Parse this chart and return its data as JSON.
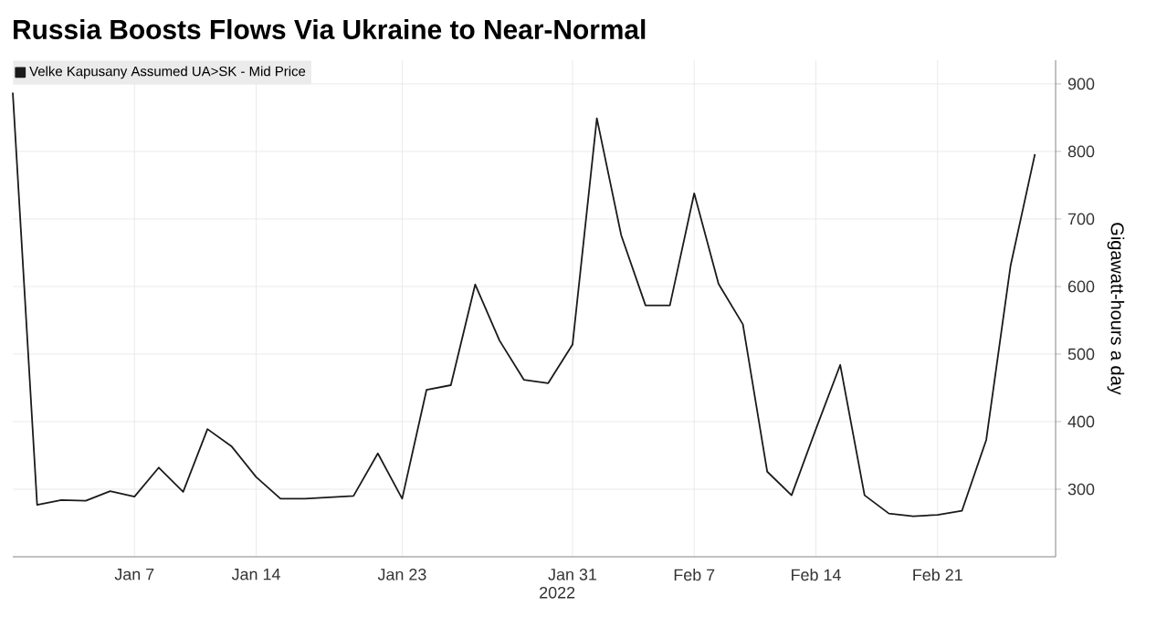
{
  "chart_data": {
    "type": "line",
    "title": "Russia Boosts Flows Via Ukraine to Near-Normal",
    "ylabel": "Gigawatt-hours a day",
    "categories": [
      null,
      null,
      null,
      null,
      null,
      "Jan 7",
      null,
      null,
      null,
      null,
      "Jan 14",
      null,
      null,
      null,
      null,
      null,
      "Jan 23",
      null,
      null,
      null,
      null,
      null,
      null,
      "Jan 31",
      null,
      null,
      null,
      null,
      "Feb 7",
      null,
      null,
      null,
      null,
      "Feb 14",
      null,
      null,
      null,
      null,
      "Feb 21",
      null,
      null,
      null,
      null
    ],
    "series": [
      {
        "name": "Velke Kapusany Assumed UA>SK - Mid Price",
        "color": "#1a1a1a",
        "values": [
          887,
          277,
          284,
          283,
          297,
          289,
          332,
          296,
          389,
          363,
          318,
          286,
          286,
          288,
          290,
          353,
          286,
          447,
          454,
          603,
          520,
          462,
          457,
          514,
          849,
          676,
          572,
          572,
          738,
          604,
          544,
          326,
          291,
          389,
          484,
          291,
          264,
          260,
          262,
          268,
          373,
          631,
          796
        ]
      }
    ],
    "annotations": [
      "2022"
    ],
    "ylim": [
      200,
      935
    ],
    "yticks": [
      300,
      400,
      500,
      600,
      700,
      800,
      900
    ],
    "grid": true,
    "legend": "top left",
    "marker": "none",
    "line_style": "solid"
  }
}
